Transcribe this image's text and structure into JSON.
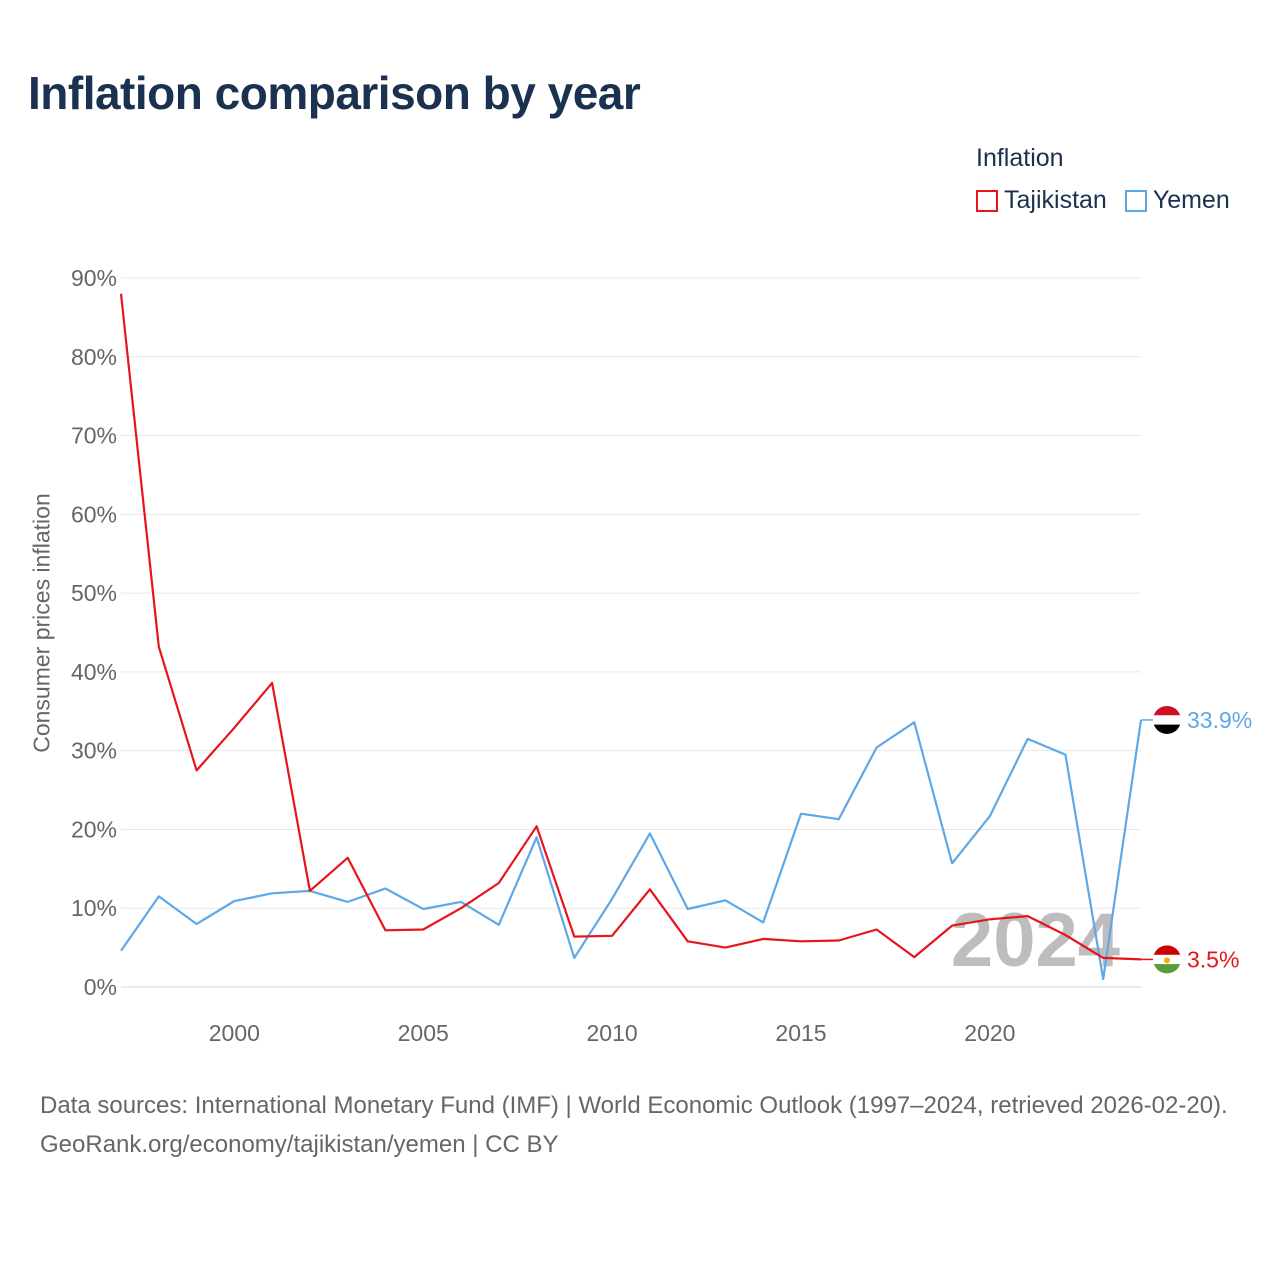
{
  "title": "Inflation comparison by year",
  "legend": {
    "title": "Inflation",
    "items": [
      {
        "label": "Tajikistan",
        "color": "#e8141c"
      },
      {
        "label": "Yemen",
        "color": "#5ea8e6"
      }
    ]
  },
  "watermark_year": "2024",
  "footer": {
    "sources": "Data sources: International Monetary Fund (IMF) | World Economic Outlook (1997–2024, retrieved 2026-02-20).",
    "credit": "GeoRank.org/economy/tajikistan/yemen | CC BY"
  },
  "chart_data": {
    "type": "line",
    "title": "Inflation comparison by year",
    "xlabel": "",
    "ylabel": "Consumer prices inflation",
    "xlim": [
      1997,
      2024
    ],
    "ylim": [
      0,
      90
    ],
    "xticks": [
      2000,
      2005,
      2010,
      2015,
      2020
    ],
    "yticks": [
      0,
      10,
      20,
      30,
      40,
      50,
      60,
      70,
      80,
      90
    ],
    "ytick_labels": [
      "0%",
      "10%",
      "20%",
      "30%",
      "40%",
      "50%",
      "60%",
      "70%",
      "80%",
      "90%"
    ],
    "x": [
      1997,
      1998,
      1999,
      2000,
      2001,
      2002,
      2003,
      2004,
      2005,
      2006,
      2007,
      2008,
      2009,
      2010,
      2011,
      2012,
      2013,
      2014,
      2015,
      2016,
      2017,
      2018,
      2019,
      2020,
      2021,
      2022,
      2023,
      2024
    ],
    "series": [
      {
        "name": "Tajikistan",
        "color": "#e8141c",
        "end_label": "3.5%",
        "values": [
          88.0,
          43.2,
          27.5,
          32.9,
          38.6,
          12.2,
          16.4,
          7.2,
          7.3,
          10.0,
          13.2,
          20.4,
          6.4,
          6.5,
          12.4,
          5.8,
          5.0,
          6.1,
          5.8,
          5.9,
          7.3,
          3.8,
          7.8,
          8.6,
          9.0,
          6.6,
          3.7,
          3.5
        ]
      },
      {
        "name": "Yemen",
        "color": "#5ea8e6",
        "end_label": "33.9%",
        "values": [
          4.6,
          11.5,
          8.0,
          10.9,
          11.9,
          12.2,
          10.8,
          12.5,
          9.9,
          10.8,
          7.9,
          19.0,
          3.7,
          11.2,
          19.5,
          9.9,
          11.0,
          8.2,
          22.0,
          21.3,
          30.4,
          33.6,
          15.7,
          21.7,
          31.5,
          29.5,
          1.0,
          33.9
        ]
      }
    ]
  }
}
